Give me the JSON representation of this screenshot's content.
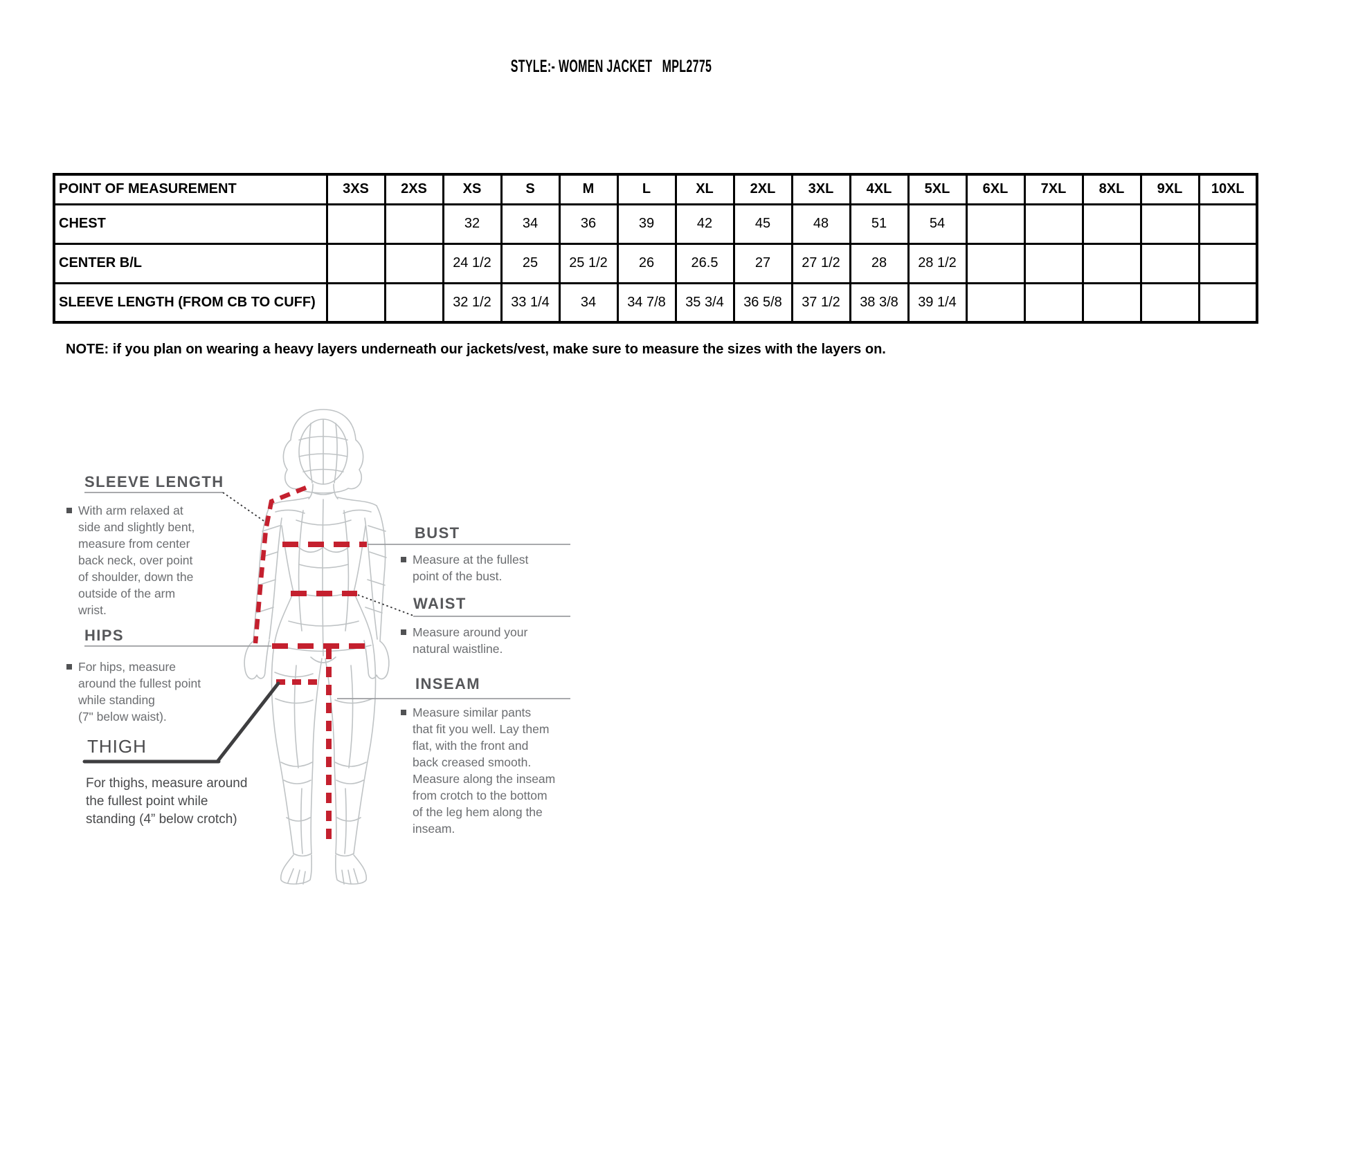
{
  "page": {
    "title": "STYLE:- WOMEN JACKET   MPL2775",
    "note": "NOTE: if you plan on wearing a heavy layers underneath our jackets/vest, make sure to measure the sizes with the layers on."
  },
  "size_table": {
    "headers": [
      "POINT OF MEASUREMENT",
      "3XS",
      "2XS",
      "XS",
      "S",
      "M",
      "L",
      "XL",
      "2XL",
      "3XL",
      "4XL",
      "5XL",
      "6XL",
      "7XL",
      "8XL",
      "9XL",
      "10XL"
    ],
    "rows": [
      {
        "label": "CHEST",
        "values": [
          "",
          "",
          "32",
          "34",
          "36",
          "39",
          "42",
          "45",
          "48",
          "51",
          "54",
          "",
          "",
          "",
          "",
          ""
        ]
      },
      {
        "label": "CENTER B/L",
        "values": [
          "",
          "",
          "24 1/2",
          "25",
          "25 1/2",
          "26",
          "26.5",
          "27",
          "27 1/2",
          "28",
          "28 1/2",
          "",
          "",
          "",
          "",
          ""
        ]
      },
      {
        "label": "SLEEVE LENGTH (FROM CB TO CUFF)",
        "values": [
          "",
          "",
          "32 1/2",
          "33 1/4",
          "34",
          "34 7/8",
          "35 3/4",
          "36 5/8",
          "37 1/2",
          "38 3/8",
          "39 1/4",
          "",
          "",
          "",
          "",
          ""
        ]
      }
    ]
  },
  "diagram": {
    "sleeve_length": {
      "heading": "SLEEVE LENGTH",
      "lines": [
        "With arm relaxed at",
        "side and slightly bent,",
        "measure from center",
        "back neck, over point",
        "of shoulder, down the",
        "outside of the arm",
        "wrist."
      ]
    },
    "hips": {
      "heading": "HIPS",
      "lines": [
        "For hips, measure",
        "around the fullest point",
        "while standing",
        "(7\" below waist)."
      ]
    },
    "thigh": {
      "heading": "THIGH",
      "lines": [
        "For thighs, measure around",
        "the fullest point while",
        "standing (4” below crotch)"
      ]
    },
    "bust": {
      "heading": "BUST",
      "lines": [
        "Measure at the fullest",
        "point of the bust."
      ]
    },
    "waist": {
      "heading": "WAIST",
      "lines": [
        "Measure around your",
        "natural waistline."
      ]
    },
    "inseam": {
      "heading": "INSEAM",
      "lines": [
        "Measure similar pants",
        "that fit you well. Lay them",
        "flat, with the front and",
        "back creased smooth.",
        "Measure along the inseam",
        "from crotch to the bottom",
        "of the leg hem along the",
        "inseam."
      ]
    }
  },
  "colors": {
    "measure_line_red": "#c4202e",
    "wireframe_gray": "#bfc3c5",
    "pointer_gray": "#9b9da0",
    "pointer_dark": "#3e3e40",
    "heading_gray": "#56575a",
    "desc_gray": "#6b6d70",
    "table_border": "#000000"
  }
}
